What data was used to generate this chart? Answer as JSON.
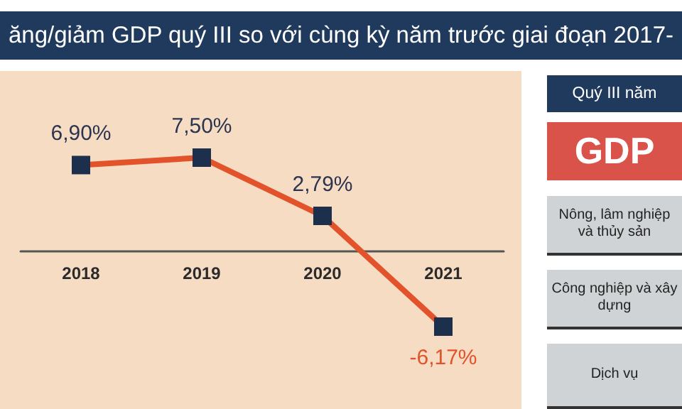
{
  "chart_data": [
    {
      "type": "line",
      "title": "ăng/giảm GDP quý III so với cùng kỳ năm trước giai đoạn 2017-",
      "categories": [
        "2018",
        "2019",
        "2020",
        "2021"
      ],
      "values": [
        6.9,
        7.5,
        2.79,
        -6.17
      ],
      "value_labels": [
        "6,90%",
        "7,50%",
        "2,79%",
        "-6,17%"
      ],
      "color": "#e2532b",
      "marker": "square",
      "tick_labels": "x"
    },
    {
      "type": "other",
      "title": "Quý III năm",
      "annotations": [
        "GDP",
        "Nông, lâm nghiệp và thủy sản",
        "Công nghiệp và xây dựng",
        "Dịch vụ"
      ]
    }
  ]
}
